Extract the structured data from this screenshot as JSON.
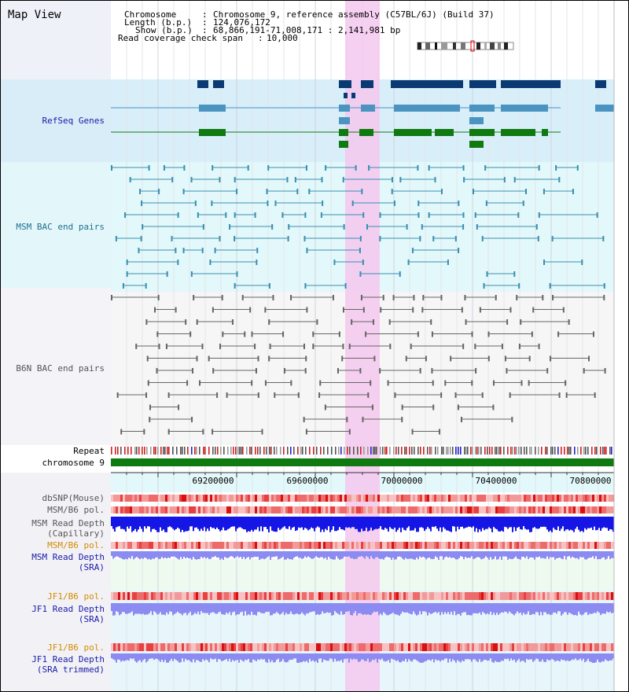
{
  "page": {
    "title": "Map View"
  },
  "info": {
    "chromosome_label": "Chromosome",
    "chromosome_value": "Chromosome 9, reference assembly (C57BL/6J) (Build 37)",
    "length_label": "Length (b.p.)",
    "length_value": "124,076,172",
    "show_label": "Show (b.p.)",
    "show_value": "68,866,191-71,008,171 : 2,141,981 bp",
    "span_label": "Read coverage check span",
    "span_value": "10,000",
    "sep": ":"
  },
  "tracks": {
    "refseq": {
      "label": "RefSeq Genes",
      "color": "#1a1aa8"
    },
    "msm_bac": {
      "label": "MSM BAC end pairs",
      "color": "#1f6f8a"
    },
    "b6n_bac": {
      "label": "B6N BAC end pairs",
      "color": "#555555"
    },
    "repeat": {
      "label": "Repeat"
    },
    "chromosome": {
      "label": "chromosome 9"
    },
    "dbsnp": {
      "label": "dbSNP(Mouse)"
    },
    "msm_b6_pol_1": {
      "label": "MSM/B6 pol."
    },
    "msm_read_depth_cap": {
      "label_1": "MSM Read Depth",
      "label_2": "(Capillary)"
    },
    "msm_b6_pol_2": {
      "label": "MSM/B6 pol.",
      "color": "#d48a00"
    },
    "msm_read_depth_sra": {
      "label_1": "MSM Read Depth",
      "label_2": "(SRA)",
      "color": "#1a1aa8"
    },
    "jf1_b6_pol_1": {
      "label": "JF1/B6 pol.",
      "color": "#d48a00"
    },
    "jf1_read_depth_sra": {
      "label_1": "JF1 Read Depth",
      "label_2": "(SRA)",
      "color": "#1a1aa8"
    },
    "jf1_b6_pol_2": {
      "label": "JF1/B6 pol.",
      "color": "#d48a00"
    },
    "jf1_read_depth_trim": {
      "label_1": "JF1 Read Depth",
      "label_2": "(SRA trimmed)",
      "color": "#1a1aa8"
    }
  },
  "axis": {
    "ticks": [
      "69200000",
      "69600000",
      "70000000",
      "70400000",
      "70800000"
    ]
  },
  "colors": {
    "gene_dark": "#0b3a73",
    "gene_mid": "#4b93c0",
    "gene_green": "#0f7a0f",
    "msm_bac": "#3a8fb0",
    "b6n_bac": "#666666",
    "chromosome_bar": "#0f7a0f",
    "highlight": "#f4c8ee",
    "depth_cap": "#1515e6",
    "depth_sra": "#8b8bf2"
  }
}
